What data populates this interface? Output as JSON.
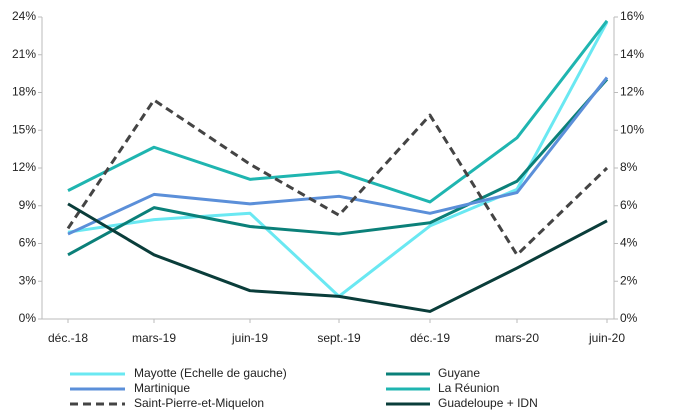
{
  "chart_data": {
    "type": "line",
    "categories": [
      "déc.-18",
      "mars-19",
      "juin-19",
      "sept.-19",
      "déc.-19",
      "mars-20",
      "juin-20"
    ],
    "ylim": [
      0,
      24
    ],
    "yticks": [
      {
        "value": 0,
        "label": "0%"
      },
      {
        "value": 3,
        "label": "3%"
      },
      {
        "value": 6,
        "label": "6%"
      },
      {
        "value": 9,
        "label": "9%"
      },
      {
        "value": 12,
        "label": "12%"
      },
      {
        "value": 15,
        "label": "15%"
      },
      {
        "value": 18,
        "label": "18%"
      },
      {
        "value": 21,
        "label": "21%"
      },
      {
        "value": 24,
        "label": "24%"
      }
    ],
    "y2lim": [
      0,
      16
    ],
    "y2ticks": [
      {
        "value": 0,
        "label": "0%"
      },
      {
        "value": 2,
        "label": "2%"
      },
      {
        "value": 4,
        "label": "4%"
      },
      {
        "value": 6,
        "label": "6%"
      },
      {
        "value": 8,
        "label": "8%"
      },
      {
        "value": 10,
        "label": "10%"
      },
      {
        "value": 12,
        "label": "12%"
      },
      {
        "value": 14,
        "label": "14%"
      },
      {
        "value": 16,
        "label": "16%"
      }
    ],
    "series": [
      {
        "name": "Mayotte (Echelle de gauche)",
        "color": "#6ae8f2",
        "values": [
          6.9,
          7.9,
          8.4,
          1.8,
          7.4,
          10.3,
          23.6
        ]
      },
      {
        "name": "Guyane",
        "color": "#0b8079",
        "axis": "y2",
        "values": [
          3.4,
          5.9,
          4.9,
          4.5,
          5.1,
          7.3,
          12.7
        ]
      },
      {
        "name": "Martinique",
        "color": "#5b8fd9",
        "axis": "y2",
        "values": [
          4.5,
          6.6,
          6.1,
          6.5,
          5.6,
          6.7,
          12.8
        ]
      },
      {
        "name": "La Réunion",
        "color": "#1fb5b0",
        "axis": "y2",
        "values": [
          6.8,
          9.1,
          7.4,
          7.8,
          6.2,
          9.6,
          15.8
        ]
      },
      {
        "name": "Saint-Pierre-et-Miquelon",
        "color": "#444444",
        "axis": "y2",
        "dashed": true,
        "values": [
          4.8,
          11.6,
          8.2,
          5.5,
          10.8,
          3.4,
          8.0
        ]
      },
      {
        "name": "Guadeloupe + IDN",
        "color": "#0a3d3a",
        "axis": "y2",
        "values": [
          6.1,
          3.4,
          1.5,
          1.2,
          0.4,
          2.7,
          5.2
        ]
      }
    ]
  }
}
